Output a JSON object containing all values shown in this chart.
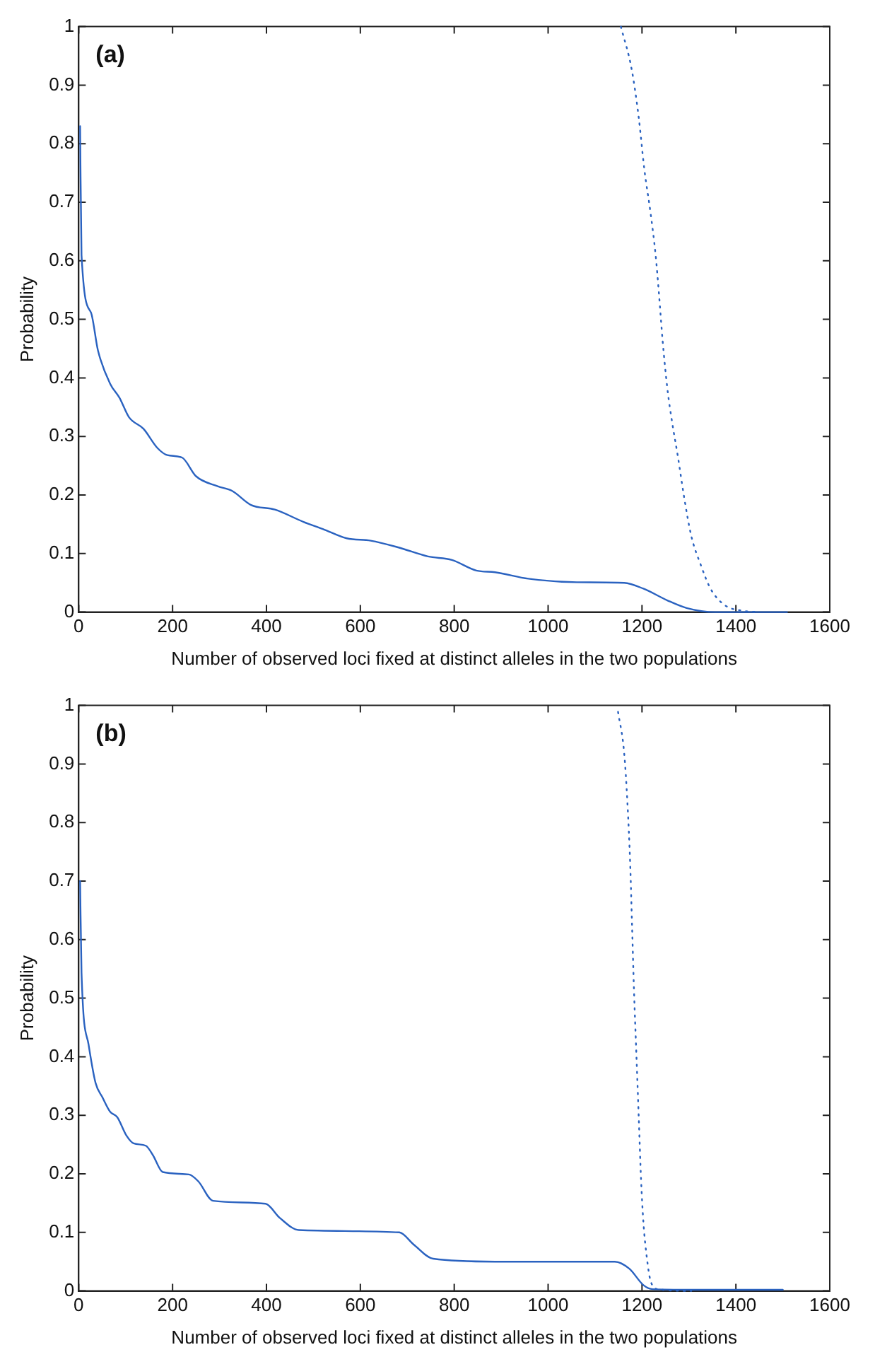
{
  "chart_data": [
    {
      "type": "line",
      "annotations": [
        "(a)"
      ],
      "xlabel": "Number of observed loci fixed at distinct alleles in the two populations",
      "ylabel": "Probability",
      "xlim": [
        0,
        1600
      ],
      "xticks": [
        0,
        200,
        400,
        600,
        800,
        1000,
        1200,
        1400,
        1600
      ],
      "ylim": [
        0,
        1
      ],
      "yticks": [
        0,
        0.1,
        0.2,
        0.3,
        0.4,
        0.5,
        0.6,
        0.7,
        0.8,
        0.9,
        1
      ],
      "grid": false,
      "legend": false,
      "marker": "none",
      "series": [
        {
          "color": "#2a62c0",
          "line_style": "solid",
          "x": [
            3,
            6,
            26,
            41,
            67,
            87,
            107,
            138,
            168,
            189,
            220,
            250,
            296,
            327,
            367,
            418,
            479,
            520,
            571,
            622,
            683,
            744,
            795,
            847,
            887,
            958,
            1061,
            1162,
            1203,
            1254,
            1295,
            1356,
            1509
          ],
          "values": [
            0.83,
            0.61,
            0.512,
            0.447,
            0.39,
            0.366,
            0.333,
            0.313,
            0.28,
            0.268,
            0.264,
            0.232,
            0.215,
            0.207,
            0.183,
            0.175,
            0.154,
            0.142,
            0.126,
            0.122,
            0.11,
            0.095,
            0.089,
            0.071,
            0.068,
            0.057,
            0.051,
            0.05,
            0.04,
            0.02,
            0.007,
            0,
            0
          ]
        },
        {
          "color": "#2a62c0",
          "line_style": "dotted",
          "x": [
            1155,
            1178,
            1193,
            1205,
            1218,
            1229,
            1236,
            1244,
            1254,
            1264,
            1276,
            1290,
            1305,
            1325,
            1346,
            1376,
            1417,
            1450
          ],
          "values": [
            1,
            0.927,
            0.845,
            0.756,
            0.683,
            0.61,
            0.545,
            0.463,
            0.382,
            0.325,
            0.268,
            0.195,
            0.13,
            0.081,
            0.04,
            0.012,
            0.002,
            0
          ]
        }
      ]
    },
    {
      "type": "line",
      "annotations": [
        "(b)"
      ],
      "xlabel": "Number of observed loci fixed at distinct alleles in the two populations",
      "ylabel": "Probability",
      "xlim": [
        0,
        1600
      ],
      "xticks": [
        0,
        200,
        400,
        600,
        800,
        1000,
        1200,
        1400,
        1600
      ],
      "ylim": [
        0,
        1
      ],
      "yticks": [
        0,
        0.1,
        0.2,
        0.3,
        0.4,
        0.5,
        0.6,
        0.7,
        0.8,
        0.9,
        1
      ],
      "grid": false,
      "legend": false,
      "marker": "none",
      "series": [
        {
          "color": "#2a62c0",
          "line_style": "solid",
          "x": [
            3,
            6,
            21,
            36,
            51,
            67,
            82,
            102,
            117,
            143,
            158,
            179,
            235,
            255,
            286,
            398,
            428,
            469,
            683,
            714,
            755,
            887,
            1142,
            1173,
            1203,
            1223,
            1305,
            1500
          ],
          "values": [
            0.7,
            0.544,
            0.421,
            0.355,
            0.33,
            0.306,
            0.297,
            0.265,
            0.252,
            0.248,
            0.232,
            0.203,
            0.199,
            0.187,
            0.154,
            0.149,
            0.125,
            0.104,
            0.1,
            0.079,
            0.055,
            0.05,
            0.05,
            0.038,
            0.01,
            0.003,
            0.002,
            0.002
          ]
        },
        {
          "color": "#2a62c0",
          "line_style": "dotted",
          "x": [
            1149,
            1162,
            1169,
            1175,
            1179,
            1183,
            1188,
            1193,
            1198,
            1203,
            1210,
            1218,
            1234,
            1305
          ],
          "values": [
            0.989,
            0.919,
            0.833,
            0.726,
            0.619,
            0.512,
            0.405,
            0.298,
            0.19,
            0.117,
            0.059,
            0.018,
            0.003,
            0
          ]
        }
      ]
    }
  ]
}
